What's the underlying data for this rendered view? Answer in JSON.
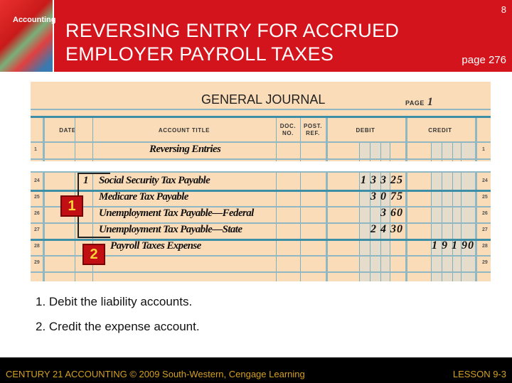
{
  "header": {
    "title_line1": "REVERSING ENTRY FOR ACCRUED",
    "title_line2": "EMPLOYER PAYROLL TAXES",
    "slide_number": "8",
    "page_ref": "page 276",
    "logo_text": "Accounting"
  },
  "journal": {
    "title": "GENERAL JOURNAL",
    "page_label": "PAGE",
    "page_number": "1",
    "columns": {
      "date": "DATE",
      "account_title": "ACCOUNT TITLE",
      "doc_no": "DOC. NO.",
      "post_ref": "POST. REF.",
      "debit": "DEBIT",
      "credit": "CREDIT"
    },
    "rows": [
      {
        "line": "1",
        "day": "",
        "account": "Reversing Entries",
        "debit": "",
        "credit": ""
      },
      {
        "line": "24",
        "day": "1",
        "account": "Social Security Tax Payable",
        "debit": "1 3 3 25",
        "credit": ""
      },
      {
        "line": "25",
        "day": "",
        "account": "Medicare Tax Payable",
        "debit": "3 0 75",
        "credit": ""
      },
      {
        "line": "26",
        "day": "",
        "account": "Unemployment Tax Payable—Federal",
        "debit": "3 60",
        "credit": ""
      },
      {
        "line": "27",
        "day": "",
        "account": "Unemployment Tax Payable—State",
        "debit": "2 4 30",
        "credit": ""
      },
      {
        "line": "28",
        "day": "",
        "account": "Payroll Taxes Expense",
        "debit": "",
        "credit": "1 9 1 90"
      },
      {
        "line": "29",
        "day": "",
        "account": "",
        "debit": "",
        "credit": ""
      }
    ],
    "callouts": [
      "1",
      "2"
    ]
  },
  "notes": [
    "1. Debit the liability accounts.",
    "2. Credit the expense account."
  ],
  "footer": {
    "left": "CENTURY 21 ACCOUNTING © 2009 South-Western, Cengage Learning",
    "right": "LESSON  9-3"
  },
  "colors": {
    "header_red": "#d4141c",
    "journal_bg": "#fbdcb8",
    "rule_blue": "#3d8fa8",
    "footer_text": "#d4a020"
  }
}
